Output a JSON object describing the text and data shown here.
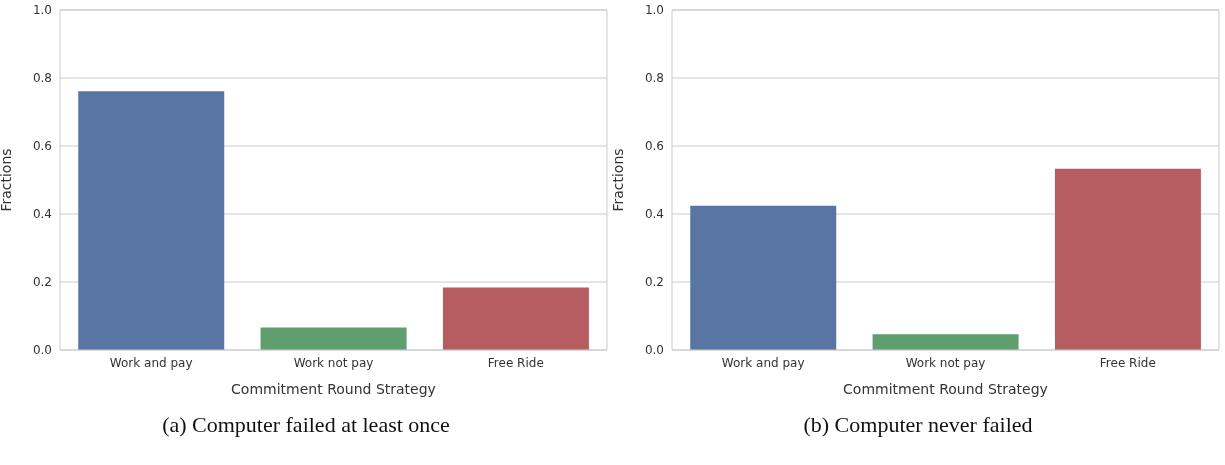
{
  "chart_data": [
    {
      "type": "bar",
      "categories": [
        "Work and pay",
        "Work not pay",
        "Free Ride"
      ],
      "values": [
        0.761,
        0.066,
        0.184
      ],
      "colors": [
        "#5975a4",
        "#5f9e6e",
        "#b55d60"
      ],
      "xlabel": "Commitment Round Strategy",
      "ylabel": "Fractions",
      "ylim": [
        0,
        1
      ],
      "yticks": [
        {
          "value": 0,
          "label": "0.0"
        },
        {
          "value": 0.2,
          "label": "0.2"
        },
        {
          "value": 0.4,
          "label": "0.4"
        },
        {
          "value": 0.6,
          "label": "0.6"
        },
        {
          "value": 0.8,
          "label": "0.8"
        },
        {
          "value": 1,
          "label": "1.0"
        }
      ],
      "grid": "y",
      "annotations": [
        "(a) Computer failed at least once"
      ]
    },
    {
      "type": "bar",
      "categories": [
        "Work and pay",
        "Work not pay",
        "Free Ride"
      ],
      "values": [
        0.424,
        0.046,
        0.533
      ],
      "colors": [
        "#5975a4",
        "#5f9e6e",
        "#b55d60"
      ],
      "xlabel": "Commitment Round Strategy",
      "ylabel": "Fractions",
      "ylim": [
        0,
        1
      ],
      "yticks": [
        {
          "value": 0,
          "label": "0.0"
        },
        {
          "value": 0.2,
          "label": "0.2"
        },
        {
          "value": 0.4,
          "label": "0.4"
        },
        {
          "value": 0.6,
          "label": "0.6"
        },
        {
          "value": 0.8,
          "label": "0.8"
        },
        {
          "value": 1,
          "label": "1.0"
        }
      ],
      "grid": "y",
      "annotations": [
        "(b) Computer never failed"
      ]
    }
  ]
}
